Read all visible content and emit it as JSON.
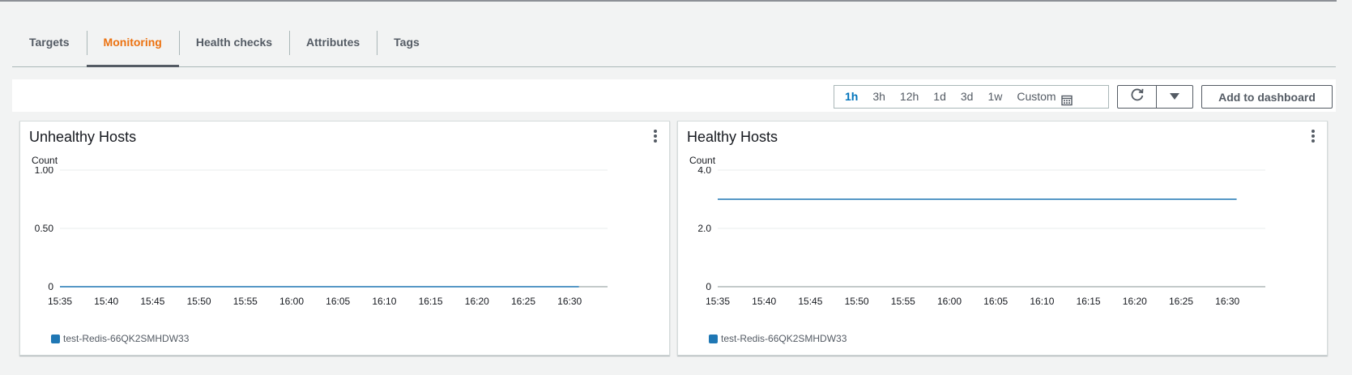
{
  "tabs": [
    {
      "label": "Targets",
      "active": false
    },
    {
      "label": "Monitoring",
      "active": true
    },
    {
      "label": "Health checks",
      "active": false
    },
    {
      "label": "Attributes",
      "active": false
    },
    {
      "label": "Tags",
      "active": false
    }
  ],
  "toolbar": {
    "ranges": [
      "1h",
      "3h",
      "12h",
      "1d",
      "3d",
      "1w"
    ],
    "active_range": "1h",
    "custom_label": "Custom",
    "add_dashboard_label": "Add to dashboard",
    "icons": {
      "custom": "calendar-icon",
      "refresh": "refresh-icon",
      "dropdown": "caret-down-icon"
    }
  },
  "colors": {
    "accent": "#ec7211",
    "active_range": "#0073bb",
    "series": "#1f77b4"
  },
  "panels": [
    {
      "title": "Unhealthy Hosts",
      "ylabel": "Count",
      "legend": "test-Redis-66QK2SMHDW33"
    },
    {
      "title": "Healthy Hosts",
      "ylabel": "Count",
      "legend": "test-Redis-66QK2SMHDW33"
    }
  ],
  "chart_data": [
    {
      "type": "line",
      "title": "Unhealthy Hosts",
      "ylabel": "Count",
      "x_ticks": [
        "15:35",
        "15:40",
        "15:45",
        "15:50",
        "15:55",
        "16:00",
        "16:05",
        "16:10",
        "16:15",
        "16:20",
        "16:25",
        "16:30"
      ],
      "y_ticks": [
        "0",
        "0.50",
        "1.00"
      ],
      "ylim": [
        0,
        1
      ],
      "grid": true,
      "legend_position": "bottom-left",
      "series": [
        {
          "name": "test-Redis-66QK2SMHDW33",
          "x": [
            "15:35",
            "16:31"
          ],
          "values": [
            0,
            0
          ]
        }
      ]
    },
    {
      "type": "line",
      "title": "Healthy Hosts",
      "ylabel": "Count",
      "x_ticks": [
        "15:35",
        "15:40",
        "15:45",
        "15:50",
        "15:55",
        "16:00",
        "16:05",
        "16:10",
        "16:15",
        "16:20",
        "16:25",
        "16:30"
      ],
      "y_ticks": [
        "0",
        "2.0",
        "4.0"
      ],
      "ylim": [
        0,
        4
      ],
      "grid": true,
      "legend_position": "bottom-left",
      "series": [
        {
          "name": "test-Redis-66QK2SMHDW33",
          "x": [
            "15:35",
            "16:31"
          ],
          "values": [
            3,
            3
          ]
        }
      ]
    }
  ]
}
